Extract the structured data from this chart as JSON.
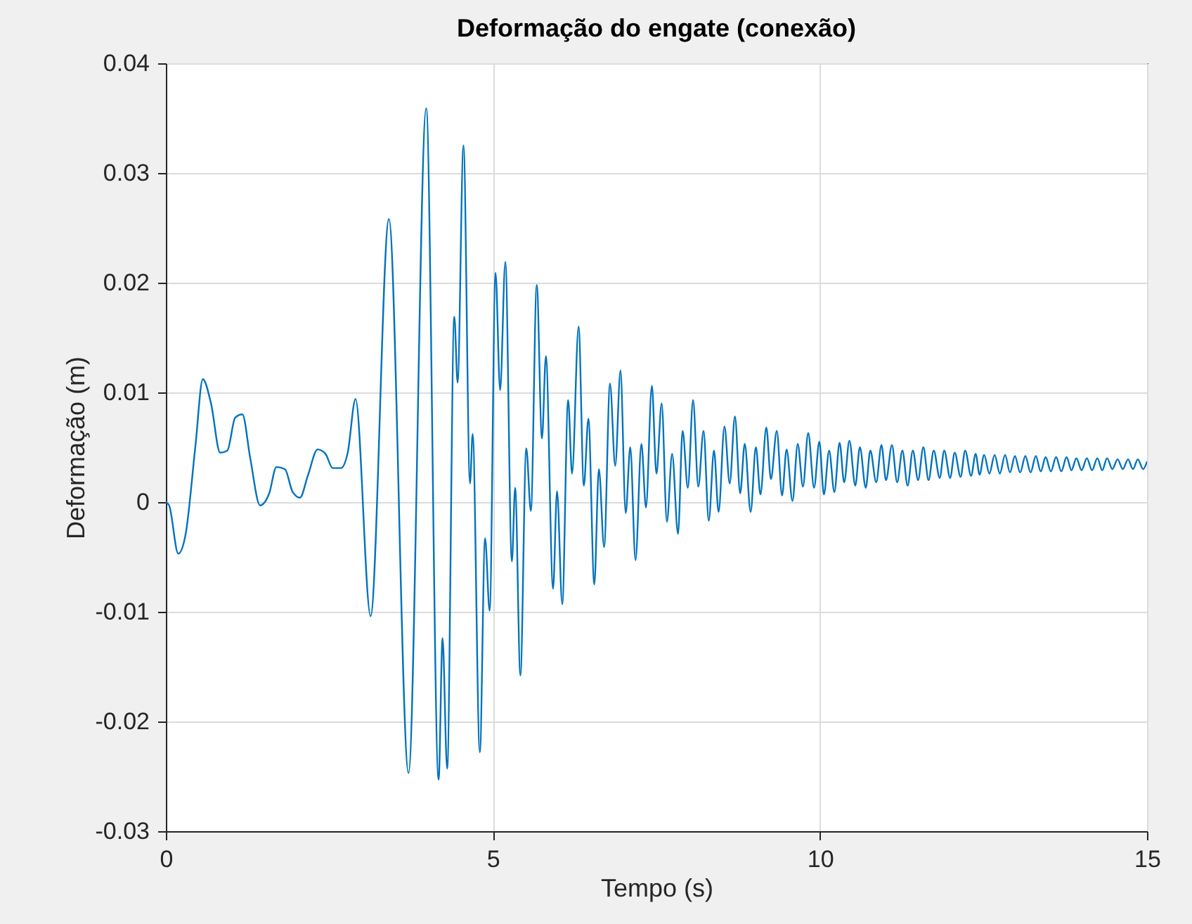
{
  "chart_data": {
    "type": "line",
    "title": "Deformação do engate (conexão)",
    "xlabel": "Tempo (s)",
    "ylabel": "Deformação (m)",
    "xlim": [
      0,
      15
    ],
    "xticks": [
      0,
      5,
      10,
      15
    ],
    "ylim": [
      -0.03,
      0.04
    ],
    "yticks": [
      -0.03,
      -0.02,
      -0.01,
      0,
      0.01,
      0.02,
      0.03,
      0.04
    ],
    "grid": true,
    "line_style": "solid",
    "series": [
      {
        "color": "#0072bd",
        "x": [
          0,
          0.05,
          0.19,
          0.3,
          0.45,
          0.565,
          0.69,
          0.83,
          0.94,
          1.06,
          1.17,
          1.29,
          1.44,
          1.58,
          1.69,
          1.82,
          1.94,
          2.05,
          2.17,
          2.32,
          2.44,
          2.55,
          2.68,
          2.78,
          2.9,
          3.13,
          3.41,
          3.71,
          3.98,
          4.17,
          4.23,
          4.3,
          4.41,
          4.46,
          4.55,
          4.65,
          4.69,
          4.8,
          4.88,
          4.95,
          5.04,
          5.11,
          5.19,
          5.29,
          5.34,
          5.42,
          5.51,
          5.58,
          5.67,
          5.75,
          5.81,
          5.92,
          5.98,
          6.06,
          6.15,
          6.21,
          6.31,
          6.39,
          6.46,
          6.55,
          6.62,
          6.7,
          6.79,
          6.87,
          6.95,
          7.03,
          7.1,
          7.18,
          7.27,
          7.34,
          7.43,
          7.5,
          7.58,
          7.66,
          7.74,
          7.83,
          7.9,
          7.98,
          8.06,
          8.14,
          8.22,
          8.3,
          8.38,
          8.45,
          8.54,
          8.62,
          8.7,
          8.78,
          8.85,
          8.94,
          9.02,
          9.09,
          9.18,
          9.25,
          9.34,
          9.42,
          9.49,
          9.58,
          9.66,
          9.74,
          9.82,
          9.91,
          9.99,
          10.06,
          10.14,
          10.22,
          10.3,
          10.37,
          10.45,
          10.54,
          10.61,
          10.7,
          10.77,
          10.86,
          10.94,
          11.01,
          11.1,
          11.18,
          11.26,
          11.34,
          11.42,
          11.5,
          11.58,
          11.66,
          11.74,
          11.83,
          11.9,
          11.99,
          12.06,
          12.15,
          12.22,
          12.31,
          12.38,
          12.44,
          12.51,
          12.59,
          12.67,
          12.75,
          12.83,
          12.905,
          12.98,
          13.06,
          13.14,
          13.22,
          13.3,
          13.375,
          13.45,
          13.53,
          13.61,
          13.69,
          13.77,
          13.845,
          13.92,
          14.0,
          14.08,
          14.16,
          14.24,
          14.315,
          14.39,
          14.47,
          14.55,
          14.63,
          14.71,
          14.785,
          14.86,
          14.94,
          15
        ],
        "values": [
          0,
          -0.0003,
          -0.0047,
          -0.003,
          0.005,
          0.0112,
          0.009,
          0.0045,
          0.0047,
          0.0077,
          0.008,
          0.004,
          -0.0003,
          0.0008,
          0.0032,
          0.003,
          0.0009,
          0.0004,
          0.0024,
          0.0048,
          0.0044,
          0.0031,
          0.0031,
          0.0045,
          0.0094,
          -0.0104,
          0.0258,
          -0.0247,
          0.0359,
          -0.0253,
          -0.0124,
          -0.0243,
          0.0169,
          0.0109,
          0.0325,
          0.0017,
          0.0062,
          -0.0228,
          -0.0033,
          -0.0099,
          0.0209,
          0.0102,
          0.0219,
          -0.0054,
          0.0013,
          -0.0158,
          0.0049,
          -0.0008,
          0.0198,
          0.0058,
          0.0133,
          -0.0079,
          0.001,
          -0.0093,
          0.0093,
          0.0026,
          0.016,
          0.0015,
          0.0076,
          -0.0075,
          0.003,
          -0.0041,
          0.0108,
          0.0033,
          0.012,
          -0.001,
          0.005,
          -0.0053,
          0.0053,
          -0.0005,
          0.0106,
          0.0026,
          0.009,
          -0.0018,
          0.0044,
          -0.0029,
          0.0065,
          0.0013,
          0.0093,
          0.0014,
          0.0065,
          -0.0017,
          0.0047,
          -0.0009,
          0.0069,
          0.0017,
          0.0078,
          0.0008,
          0.0053,
          -0.0009,
          0.005,
          0.0007,
          0.0068,
          0.0021,
          0.0065,
          0.0006,
          0.0048,
          0.0001,
          0.0053,
          0.0014,
          0.0063,
          0.0013,
          0.0055,
          0.0007,
          0.0047,
          0.0009,
          0.0054,
          0.0018,
          0.0056,
          0.0015,
          0.005,
          0.0013,
          0.0047,
          0.0018,
          0.0052,
          0.002,
          0.0052,
          0.0018,
          0.0047,
          0.0015,
          0.0047,
          0.002,
          0.005,
          0.002,
          0.0047,
          0.0022,
          0.0047,
          0.0022,
          0.0045,
          0.0023,
          0.0047,
          0.0024,
          0.0044,
          0.0025,
          0.0043,
          0.0026,
          0.0043,
          0.0026,
          0.0043,
          0.0027,
          0.0042,
          0.0027,
          0.0042,
          0.0027,
          0.0042,
          0.0028,
          0.0041,
          0.0028,
          0.0041,
          0.0028,
          0.0041,
          0.0029,
          0.004,
          0.0029,
          0.004,
          0.0029,
          0.004,
          0.0029,
          0.004,
          0.003,
          0.0039,
          0.003,
          0.0039,
          0.003,
          0.0039,
          0.003,
          0.0037
        ]
      }
    ]
  }
}
